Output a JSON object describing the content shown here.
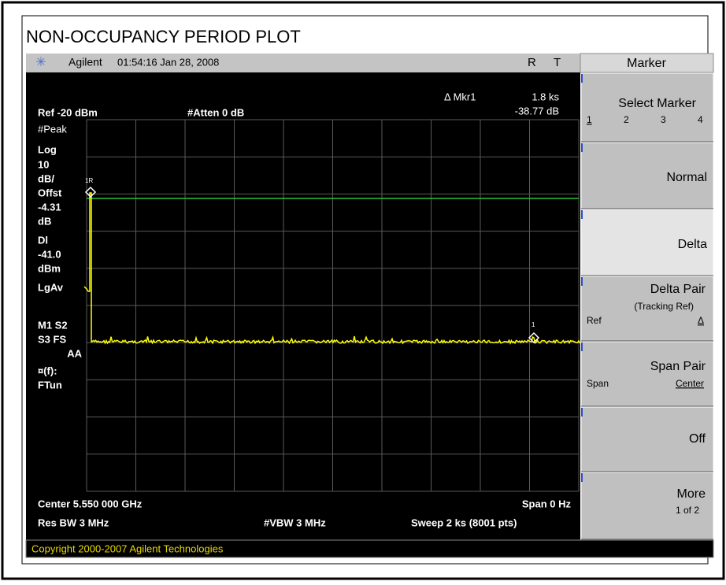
{
  "header": {
    "title": "NON-OCCUPANCY PERIOD PLOT"
  },
  "status": {
    "brand": "Agilent",
    "time": "01:54:16  Jan 28, 2008",
    "r": "R",
    "t": "T"
  },
  "readout": {
    "marker": "Δ Mkr1",
    "x": "1.8 ks",
    "y": "-38.77 dB",
    "ref": "Ref -20 dBm",
    "atten": "#Atten 0 dB"
  },
  "left_labels": [
    "#Peak",
    "Log",
    "10",
    "dB/",
    "Offst",
    "-4.31",
    "dB",
    "Dl",
    "-41.0",
    "dBm",
    "LgAv",
    "M1  S2",
    "S3  FS",
    "AA",
    "¤(f):",
    "FTun"
  ],
  "markers": {
    "ref_label": "1R",
    "label": "1"
  },
  "bottom": {
    "center": "Center 5.550 000 GHz",
    "span": "Span 0 Hz",
    "rbw": "Res BW 3 MHz",
    "vbw": "#VBW 3 MHz",
    "sweep": "Sweep 2 ks (8001 pts)"
  },
  "copyright": "Copyright 2000-2007 Agilent Technologies",
  "softkeys": {
    "header": "Marker",
    "select": {
      "label": "Select Marker",
      "options": [
        "1",
        "2",
        "3",
        "4"
      ]
    },
    "normal": "Normal",
    "delta": "Delta",
    "delta_pair": {
      "label": "Delta Pair",
      "sub": "(Tracking Ref)",
      "left": "Ref",
      "right": "Δ"
    },
    "span_pair": {
      "label": "Span Pair",
      "left": "Span",
      "right": "Center"
    },
    "off": "Off",
    "more": {
      "label": "More",
      "sub": "1 of 2"
    }
  }
}
